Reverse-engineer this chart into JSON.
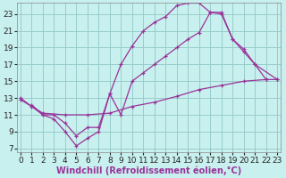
{
  "bg_color": "#c8f0ee",
  "line_color": "#993399",
  "grid_color": "#99cccc",
  "xlim": [
    -0.3,
    23.3
  ],
  "ylim": [
    6.5,
    24.3
  ],
  "xticks": [
    0,
    1,
    2,
    3,
    4,
    5,
    6,
    7,
    8,
    9,
    10,
    11,
    12,
    13,
    14,
    15,
    16,
    17,
    18,
    19,
    20,
    21,
    22,
    23
  ],
  "yticks": [
    7,
    9,
    11,
    13,
    15,
    17,
    19,
    21,
    23
  ],
  "xlabel": "Windchill (Refroidissement éolien,°C)",
  "line1_x": [
    0,
    1,
    2,
    3,
    4,
    5,
    6,
    7,
    8,
    9,
    10,
    11,
    12,
    13,
    14,
    15,
    16,
    17,
    18,
    19,
    20,
    21,
    22
  ],
  "line1_y": [
    13,
    12,
    11,
    10.5,
    9.0,
    7.3,
    8.2,
    9.0,
    13.5,
    17.0,
    19.2,
    21.0,
    22.0,
    22.7,
    24.0,
    24.3,
    24.3,
    23.2,
    23.0,
    20.0,
    18.8,
    17.0,
    15.2
  ],
  "line2_x": [
    1,
    2,
    3,
    4,
    5,
    6,
    7,
    8,
    9,
    10,
    11,
    12,
    13,
    14,
    15,
    16,
    17,
    18,
    19,
    20,
    21,
    23
  ],
  "line2_y": [
    12.2,
    11.0,
    11.0,
    10.0,
    8.5,
    9.5,
    9.5,
    13.5,
    11.0,
    15.0,
    16.0,
    17.0,
    18.0,
    19.0,
    20.0,
    20.8,
    23.2,
    23.2,
    20.0,
    18.5,
    17.0,
    15.2
  ],
  "line3_x": [
    0,
    2,
    4,
    6,
    8,
    10,
    12,
    14,
    16,
    18,
    20,
    22,
    23
  ],
  "line3_y": [
    12.8,
    11.2,
    11.0,
    11.0,
    11.2,
    12.0,
    12.5,
    13.2,
    14.0,
    14.5,
    15.0,
    15.2,
    15.2
  ],
  "xlabel_fontsize": 7,
  "tick_fontsize": 6.5,
  "linewidth": 0.9,
  "markersize": 3.0
}
